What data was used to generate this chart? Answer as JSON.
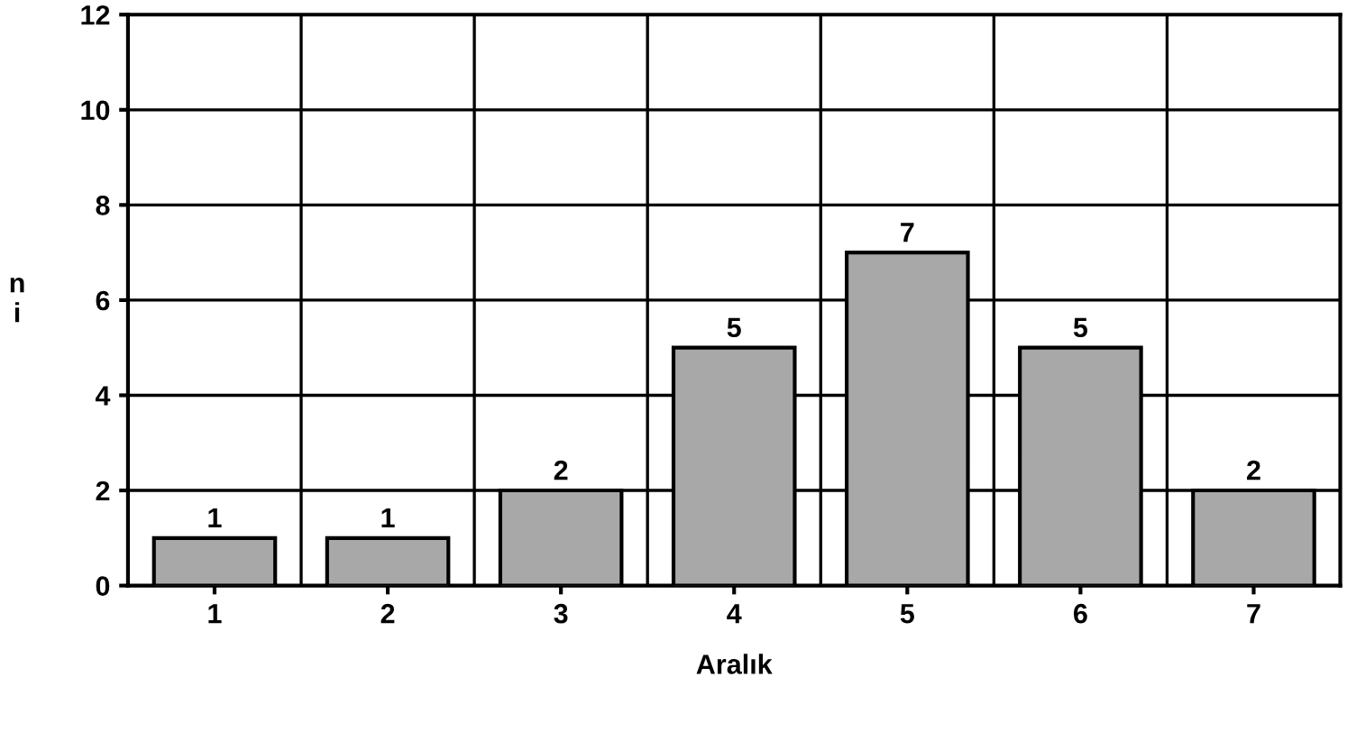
{
  "chart_data": {
    "type": "bar",
    "xlabel": "Aralık",
    "ylabel": "n\ni",
    "categories": [
      "1",
      "2",
      "3",
      "4",
      "5",
      "6",
      "7"
    ],
    "values": [
      1,
      1,
      2,
      5,
      7,
      5,
      2
    ],
    "color": "#a8a8a8",
    "ylim": [
      0,
      12
    ],
    "yticks": [
      0,
      2,
      4,
      6,
      8,
      10,
      12
    ],
    "grid": true,
    "data_labels": true
  }
}
